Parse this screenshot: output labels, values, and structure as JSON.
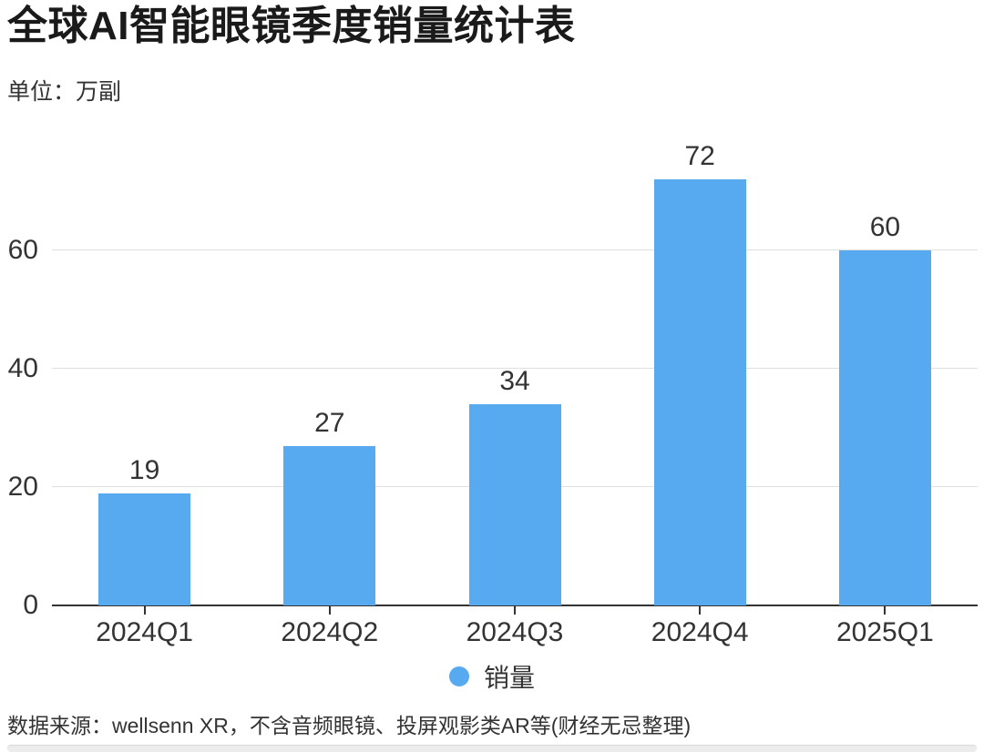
{
  "header": {
    "title": "全球AI智能眼镜季度销量统计表",
    "unit_label": "单位：万副"
  },
  "chart_data": {
    "type": "bar",
    "title": "全球AI智能眼镜季度销量统计表",
    "unit": "万副",
    "categories": [
      "2024Q1",
      "2024Q2",
      "2024Q3",
      "2024Q4",
      "2025Q1"
    ],
    "series": [
      {
        "name": "销量",
        "values": [
          19,
          27,
          34,
          72,
          60
        ],
        "color": "#57a9f0"
      }
    ],
    "yticks": [
      0,
      20,
      40,
      60
    ],
    "ylim": [
      0,
      75
    ],
    "grid": true,
    "value_labels_shown": true,
    "legend_position": "bottom",
    "xlabel": "",
    "ylabel": ""
  },
  "legend": {
    "label": "销量"
  },
  "footer": {
    "source": "数据来源：wellsenn XR，不含音频眼镜、投屏观影类AR等(财经无忌整理)"
  },
  "colors": {
    "bar": "#57a9f0",
    "axis": "#333333",
    "gridline": "#e0e0e0",
    "text": "#333333",
    "title_text": "#1a1a1a",
    "divider": "#ececec"
  }
}
